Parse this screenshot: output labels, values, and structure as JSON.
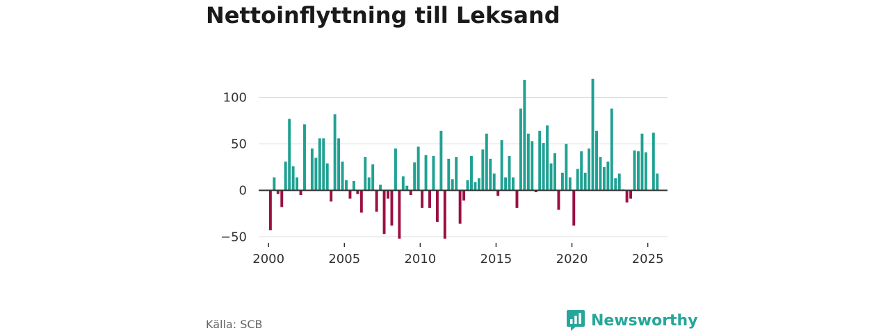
{
  "title": "Nettoinflyttning till Leksand",
  "source": "Källa: SCB",
  "brand": {
    "name": "Newsworthy",
    "icon": "newsworthy-logo-icon"
  },
  "colors": {
    "positive": "#1fa192",
    "negative": "#9b0f43",
    "grid": "#dddddd",
    "zero": "#333333",
    "brand": "#26a69a"
  },
  "chart_data": {
    "type": "bar",
    "title": "Nettoinflyttning till Leksand",
    "xlabel": "",
    "ylabel": "",
    "ylim": [
      -55,
      125
    ],
    "yticks": [
      100,
      50,
      0,
      -50
    ],
    "ytick_labels": [
      "100",
      "50",
      "0",
      "−50"
    ],
    "xlim": [
      1999.35,
      2026.3
    ],
    "xticks": [
      2000,
      2005,
      2010,
      2015,
      2020,
      2025
    ],
    "xtick_labels": [
      "2000",
      "2005",
      "2010",
      "2015",
      "2020",
      "2025"
    ],
    "bar_width_years": 0.18,
    "grid": true,
    "x": [
      2000.125,
      2000.375,
      2000.625,
      2000.875,
      2001.125,
      2001.375,
      2001.625,
      2001.875,
      2002.125,
      2002.375,
      2002.625,
      2002.875,
      2003.125,
      2003.375,
      2003.625,
      2003.875,
      2004.125,
      2004.375,
      2004.625,
      2004.875,
      2005.125,
      2005.375,
      2005.625,
      2005.875,
      2006.125,
      2006.375,
      2006.625,
      2006.875,
      2007.125,
      2007.375,
      2007.625,
      2007.875,
      2008.125,
      2008.375,
      2008.625,
      2008.875,
      2009.125,
      2009.375,
      2009.625,
      2009.875,
      2010.125,
      2010.375,
      2010.625,
      2010.875,
      2011.125,
      2011.375,
      2011.625,
      2011.875,
      2012.125,
      2012.375,
      2012.625,
      2012.875,
      2013.125,
      2013.375,
      2013.625,
      2013.875,
      2014.125,
      2014.375,
      2014.625,
      2014.875,
      2015.125,
      2015.375,
      2015.625,
      2015.875,
      2016.125,
      2016.375,
      2016.625,
      2016.875,
      2017.125,
      2017.375,
      2017.625,
      2017.875,
      2018.125,
      2018.375,
      2018.625,
      2018.875,
      2019.125,
      2019.375,
      2019.625,
      2019.875,
      2020.125,
      2020.375,
      2020.625,
      2020.875,
      2021.125,
      2021.375,
      2021.625,
      2021.875,
      2022.125,
      2022.375,
      2022.625,
      2022.875,
      2023.125,
      2023.375,
      2023.625,
      2023.875,
      2024.125,
      2024.375,
      2024.625,
      2024.875,
      2025.125,
      2025.375,
      2025.625,
      2025.875
    ],
    "values": [
      -43,
      14,
      -4,
      -18,
      31,
      77,
      26,
      14,
      -5,
      71,
      0,
      45,
      35,
      56,
      56,
      29,
      -12,
      82,
      56,
      31,
      11,
      -9,
      10,
      -4,
      -24,
      36,
      14,
      28,
      -23,
      6,
      -47,
      -9,
      -38,
      45,
      -52,
      15,
      5,
      -5,
      30,
      47,
      -19,
      38,
      -19,
      37,
      -34,
      64,
      -52,
      34,
      12,
      36,
      -36,
      -11,
      11,
      37,
      9,
      13,
      44,
      61,
      34,
      18,
      -6,
      54,
      14,
      37,
      14,
      -19,
      88,
      119,
      61,
      53,
      -2,
      64,
      51,
      70,
      29,
      40,
      -21,
      19,
      50,
      14,
      -38,
      23,
      42,
      19,
      45,
      120,
      64,
      36,
      25,
      31,
      88,
      13,
      18,
      1,
      -13,
      -9,
      43,
      42,
      61,
      41,
      0,
      62,
      18,
      0
    ]
  }
}
